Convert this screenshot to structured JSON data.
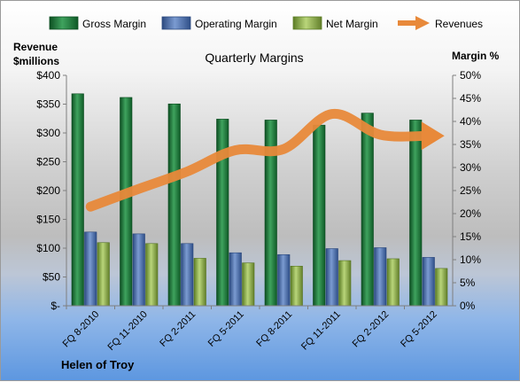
{
  "chart_data": {
    "type": "bar",
    "title": "Quarterly Margins",
    "footer": "Helen of Troy",
    "left_axis": {
      "label_line1": "Revenue",
      "label_line2": "$millions",
      "range": [
        0,
        400
      ],
      "ticks": [
        "$-",
        "$50",
        "$100",
        "$150",
        "$200",
        "$250",
        "$300",
        "$350",
        "$400"
      ]
    },
    "right_axis": {
      "label": "Margin %",
      "range": [
        0,
        50
      ],
      "ticks": [
        "0%",
        "5%",
        "10%",
        "15%",
        "20%",
        "25%",
        "30%",
        "35%",
        "40%",
        "45%",
        "50%"
      ]
    },
    "categories": [
      "FQ 8-2010",
      "FQ 11-2010",
      "FQ 2-2011",
      "FQ 5-2011",
      "FQ 8-2011",
      "FQ 11-2011",
      "FQ 2-2012",
      "FQ 5-2012"
    ],
    "series": [
      {
        "name": "Gross Margin",
        "axis": "right",
        "color": "#1e7a3c",
        "values": [
          46,
          45.2,
          43.8,
          40.5,
          40.3,
          39.2,
          41.8,
          40.3
        ]
      },
      {
        "name": "Operating Margin",
        "axis": "right",
        "color": "#4a6fae",
        "values": [
          16,
          15.6,
          13.5,
          11.5,
          11.1,
          12.4,
          12.6,
          10.5
        ]
      },
      {
        "name": "Net Margin",
        "axis": "right",
        "color": "#8fb24a",
        "values": [
          13.7,
          13.5,
          10.3,
          9.3,
          8.6,
          9.8,
          10.2,
          8.1
        ]
      },
      {
        "name": "Revenues",
        "axis": "left",
        "color": "#e8893a",
        "type": "line",
        "values": [
          172,
          203,
          233,
          270,
          272,
          333,
          297,
          295
        ]
      }
    ],
    "grid": false,
    "legend": "top"
  }
}
